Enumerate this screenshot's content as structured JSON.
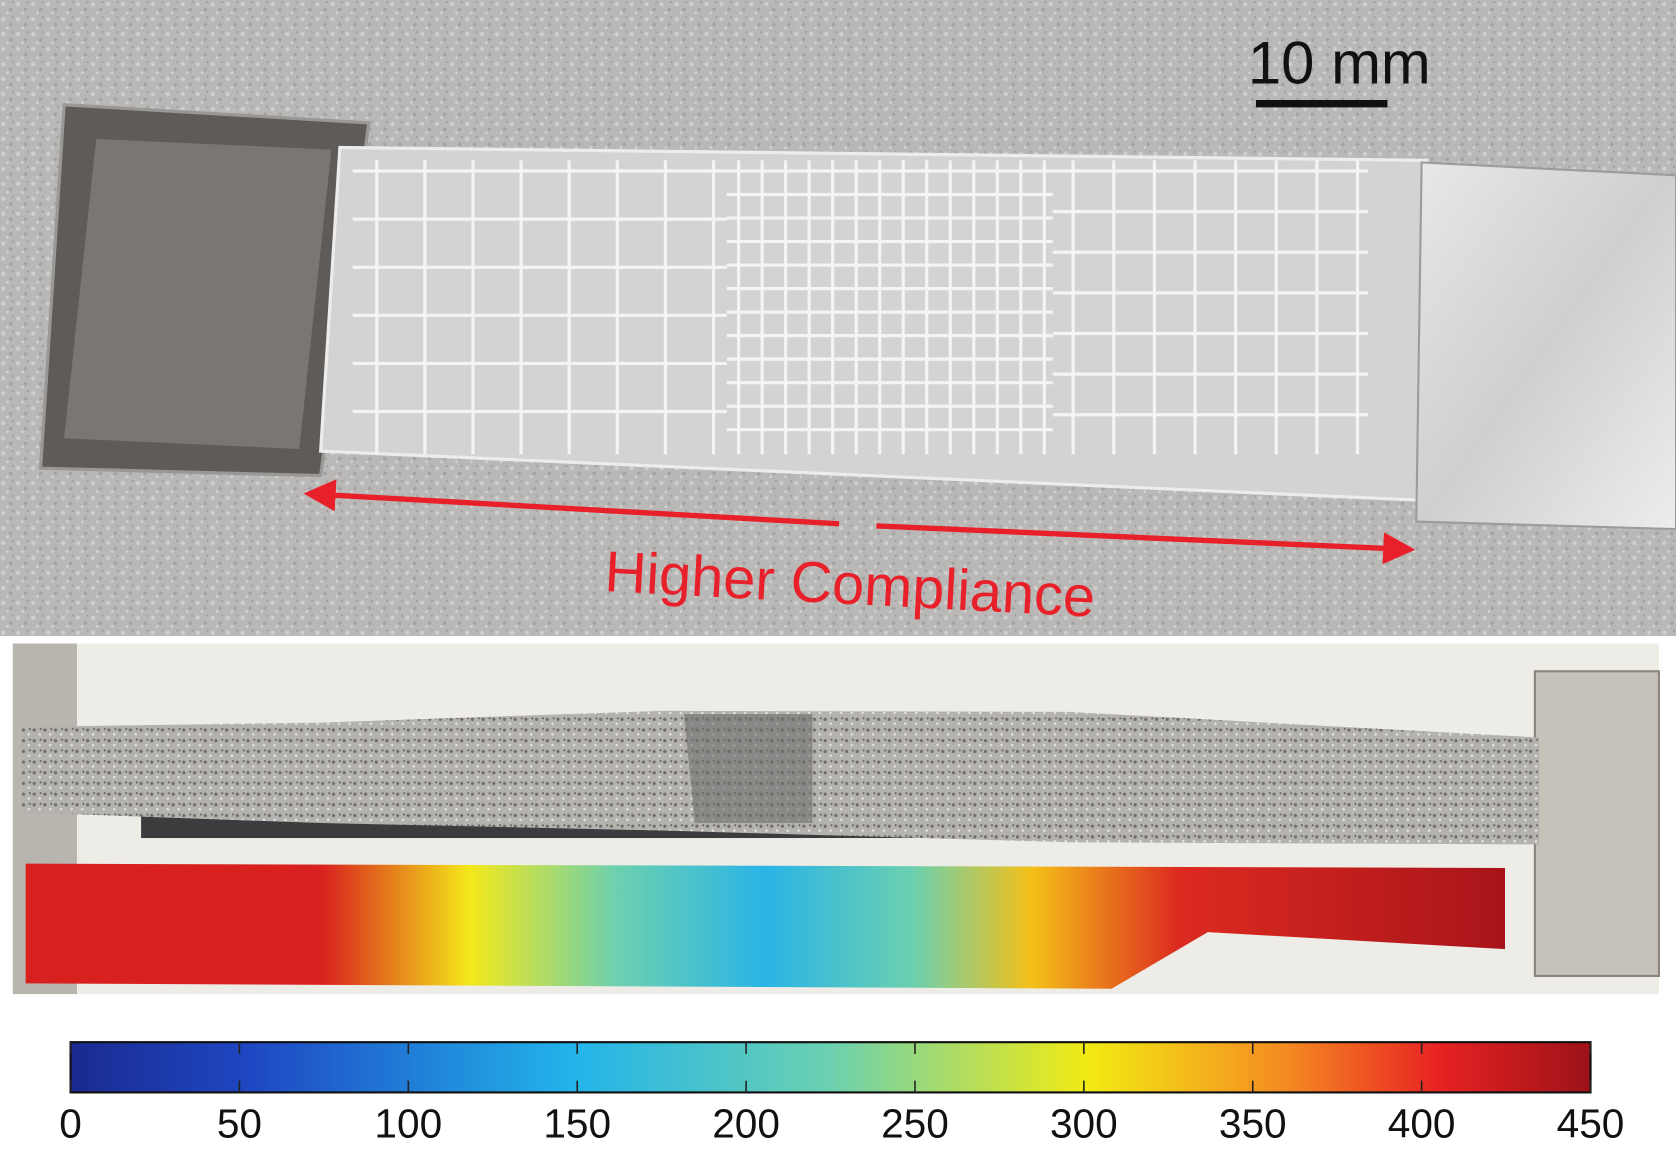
{
  "scale_bar": {
    "label": "10 mm"
  },
  "annotation": {
    "text": "Higher Compliance"
  },
  "colorbar": {
    "lim": [
      0,
      450
    ],
    "ticks": [
      0,
      50,
      100,
      150,
      200,
      250,
      300,
      350,
      400,
      450
    ]
  }
}
